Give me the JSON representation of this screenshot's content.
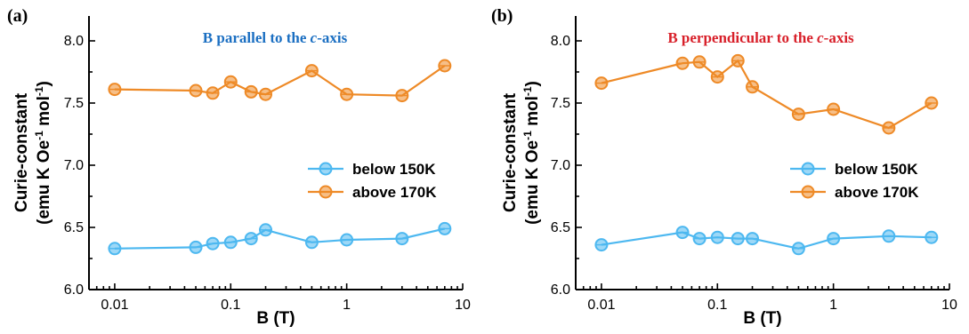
{
  "colors": {
    "blue": "#4db8f0",
    "orange": "#ee8a27",
    "title_blue": "#1b6fc2",
    "title_red": "#d8202a"
  },
  "chart_data": [
    {
      "type": "line",
      "panel_label": "(a)",
      "title_parts": [
        "B parallel to the ",
        "c",
        "-axis"
      ],
      "title_color": "#1b6fc2",
      "xlabel": "B (T)",
      "ylabel_line1": "Curie-constant",
      "ylabel_line2_parts": [
        "(emu K Oe",
        "-1",
        " mol",
        "-1",
        ")"
      ],
      "xscale": "log",
      "xlim": [
        0.006,
        10
      ],
      "ylim": [
        6.0,
        8.2
      ],
      "xticks": [
        {
          "v": 0.01,
          "label": "0.01"
        },
        {
          "v": 0.1,
          "label": "0.1"
        },
        {
          "v": 1,
          "label": "1"
        },
        {
          "v": 10,
          "label": "10"
        }
      ],
      "yticks": [
        {
          "v": 6.0,
          "label": "6.0"
        },
        {
          "v": 6.5,
          "label": "6.5"
        },
        {
          "v": 7.0,
          "label": "7.0"
        },
        {
          "v": 7.5,
          "label": "7.5"
        },
        {
          "v": 8.0,
          "label": "8.0"
        }
      ],
      "legend_position": "right",
      "series": [
        {
          "name": "below 150K",
          "color": "#4db8f0",
          "x": [
            0.01,
            0.05,
            0.07,
            0.1,
            0.15,
            0.2,
            0.5,
            1,
            3,
            7
          ],
          "y": [
            6.33,
            6.34,
            6.37,
            6.38,
            6.41,
            6.48,
            6.38,
            6.4,
            6.41,
            6.49
          ]
        },
        {
          "name": "above 170K",
          "color": "#ee8a27",
          "x": [
            0.01,
            0.05,
            0.07,
            0.1,
            0.15,
            0.2,
            0.5,
            1,
            3,
            7
          ],
          "y": [
            7.61,
            7.6,
            7.58,
            7.67,
            7.59,
            7.57,
            7.76,
            7.57,
            7.56,
            7.8
          ]
        }
      ]
    },
    {
      "type": "line",
      "panel_label": "(b)",
      "title_parts": [
        "B perpendicular to the ",
        "c",
        "-axis"
      ],
      "title_color": "#d8202a",
      "xlabel": "B (T)",
      "ylabel_line1": "Curie-constant",
      "ylabel_line2_parts": [
        "(emu K Oe",
        "-1",
        " mol",
        "-1",
        ")"
      ],
      "xscale": "log",
      "xlim": [
        0.006,
        10
      ],
      "ylim": [
        6.0,
        8.2
      ],
      "xticks": [
        {
          "v": 0.01,
          "label": "0.01"
        },
        {
          "v": 0.1,
          "label": "0.1"
        },
        {
          "v": 1,
          "label": "1"
        },
        {
          "v": 10,
          "label": "10"
        }
      ],
      "yticks": [
        {
          "v": 6.0,
          "label": "6.0"
        },
        {
          "v": 6.5,
          "label": "6.5"
        },
        {
          "v": 7.0,
          "label": "7.0"
        },
        {
          "v": 7.5,
          "label": "7.5"
        },
        {
          "v": 8.0,
          "label": "8.0"
        }
      ],
      "legend_position": "right",
      "series": [
        {
          "name": "below 150K",
          "color": "#4db8f0",
          "x": [
            0.01,
            0.05,
            0.07,
            0.1,
            0.15,
            0.2,
            0.5,
            1,
            3,
            7
          ],
          "y": [
            6.36,
            6.46,
            6.41,
            6.42,
            6.41,
            6.41,
            6.33,
            6.41,
            6.43,
            6.42
          ]
        },
        {
          "name": "above 170K",
          "color": "#ee8a27",
          "x": [
            0.01,
            0.05,
            0.07,
            0.1,
            0.15,
            0.2,
            0.5,
            1,
            3,
            7
          ],
          "y": [
            7.66,
            7.82,
            7.83,
            7.71,
            7.84,
            7.63,
            7.41,
            7.45,
            7.3,
            7.5
          ]
        }
      ]
    }
  ]
}
